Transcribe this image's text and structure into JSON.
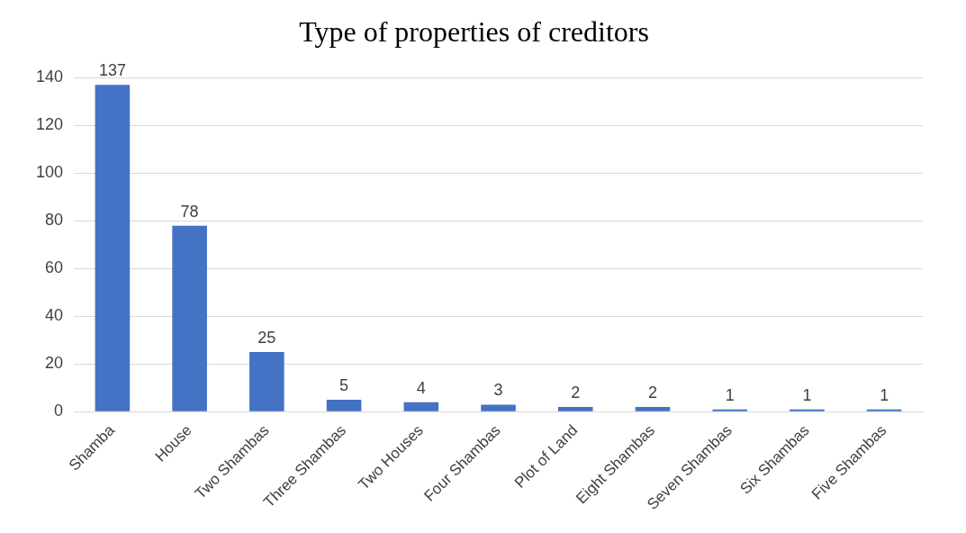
{
  "chart_data": {
    "type": "bar",
    "title": "Type of properties of creditors",
    "categories": [
      "Shamba",
      "House",
      "Two Shambas",
      "Three Shambas",
      "Two Houses",
      "Four Shambas",
      "Plot of Land",
      "Eight Shambas",
      "Seven Shambas",
      "Six Shambas",
      "Five Shambas"
    ],
    "values": [
      137,
      78,
      25,
      5,
      4,
      3,
      2,
      2,
      1,
      1,
      1
    ],
    "color": "#4472c4",
    "ylim": [
      0,
      140
    ],
    "yticks": [
      0,
      20,
      40,
      60,
      80,
      100,
      120,
      140
    ],
    "grid": "y",
    "data_labels": true,
    "legend": false
  }
}
